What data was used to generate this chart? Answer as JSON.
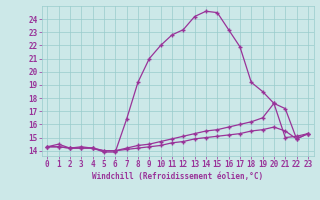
{
  "xlabel": "Windchill (Refroidissement éolien,°C)",
  "bg_color": "#cce8e8",
  "grid_color": "#99cccc",
  "line_color": "#993399",
  "xlim": [
    -0.5,
    23.5
  ],
  "ylim": [
    13.6,
    25.0
  ],
  "xticks": [
    0,
    1,
    2,
    3,
    4,
    5,
    6,
    7,
    8,
    9,
    10,
    11,
    12,
    13,
    14,
    15,
    16,
    17,
    18,
    19,
    20,
    21,
    22,
    23
  ],
  "yticks": [
    14,
    15,
    16,
    17,
    18,
    19,
    20,
    21,
    22,
    23,
    24
  ],
  "series1_x": [
    0,
    1,
    2,
    3,
    4,
    5,
    6,
    7,
    8,
    9,
    10,
    11,
    12,
    13,
    14,
    15,
    16,
    17,
    18,
    19,
    20,
    21,
    22,
    23
  ],
  "series1_y": [
    14.3,
    14.5,
    14.2,
    14.3,
    14.2,
    13.9,
    13.9,
    16.4,
    19.2,
    21.0,
    22.0,
    22.8,
    23.2,
    24.2,
    24.6,
    24.5,
    23.2,
    21.9,
    19.2,
    18.5,
    17.6,
    15.0,
    15.1,
    15.3
  ],
  "series2_x": [
    0,
    1,
    2,
    3,
    4,
    5,
    6,
    7,
    8,
    9,
    10,
    11,
    12,
    13,
    14,
    15,
    16,
    17,
    18,
    19,
    20,
    21,
    22,
    23
  ],
  "series2_y": [
    14.3,
    14.3,
    14.2,
    14.2,
    14.2,
    14.0,
    14.0,
    14.2,
    14.4,
    14.5,
    14.7,
    14.9,
    15.1,
    15.3,
    15.5,
    15.6,
    15.8,
    16.0,
    16.2,
    16.5,
    17.6,
    17.2,
    14.9,
    15.3
  ],
  "series3_x": [
    0,
    1,
    2,
    3,
    4,
    5,
    6,
    7,
    8,
    9,
    10,
    11,
    12,
    13,
    14,
    15,
    16,
    17,
    18,
    19,
    20,
    21,
    22,
    23
  ],
  "series3_y": [
    14.3,
    14.3,
    14.2,
    14.2,
    14.2,
    14.0,
    14.0,
    14.1,
    14.2,
    14.3,
    14.4,
    14.6,
    14.7,
    14.9,
    15.0,
    15.1,
    15.2,
    15.3,
    15.5,
    15.6,
    15.8,
    15.5,
    14.9,
    15.3
  ]
}
